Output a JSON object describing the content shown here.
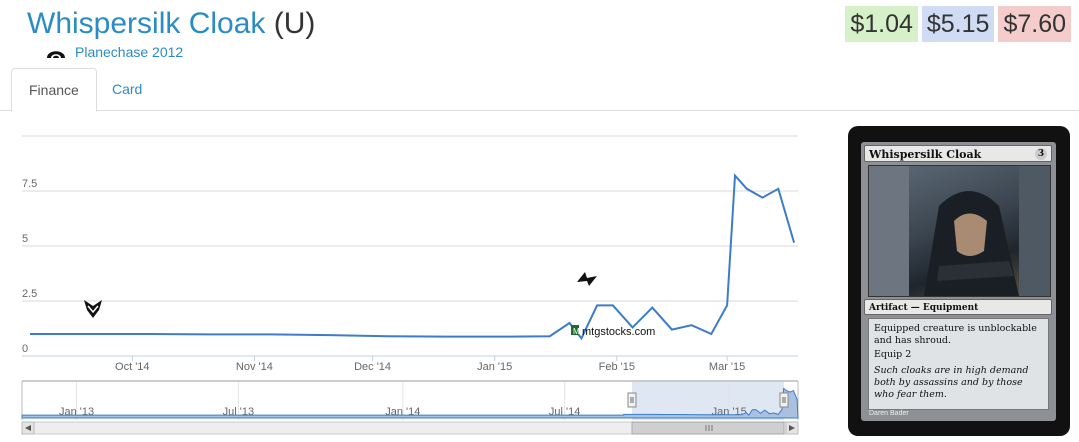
{
  "header": {
    "card_name": "Whispersilk Cloak",
    "rarity": "(U)",
    "set_name": "Planechase 2012",
    "set_icon": "planechase-icon"
  },
  "prices": [
    "$1.04",
    "$5.15",
    "$7.60"
  ],
  "colors": {
    "link": "#2a8cc6",
    "line": "#3d7cc9",
    "low": "#d6f0c9",
    "avg": "#d0dcf4",
    "high": "#f4cccc"
  },
  "tabs": [
    {
      "label": "Finance"
    },
    {
      "label": "Card"
    }
  ],
  "chart_data": {
    "type": "line",
    "x_tick_labels": [
      "Oct '14",
      "Nov '14",
      "Dec '14",
      "Jan '15",
      "Feb '15",
      "Mar '15"
    ],
    "y_tick_labels": [
      "0",
      "2.5",
      "5",
      "7.5"
    ],
    "ylim": [
      0,
      10
    ],
    "grid": true,
    "watermark": "mtgstocks.com",
    "x": [
      "2014-09-05",
      "2014-09-20",
      "2014-10-05",
      "2014-10-20",
      "2014-11-05",
      "2014-11-20",
      "2014-12-05",
      "2014-12-20",
      "2015-01-05",
      "2015-01-15",
      "2015-01-20",
      "2015-01-23",
      "2015-01-27",
      "2015-01-31",
      "2015-02-05",
      "2015-02-10",
      "2015-02-15",
      "2015-02-20",
      "2015-02-25",
      "2015-03-01",
      "2015-03-03",
      "2015-03-06",
      "2015-03-10",
      "2015-03-14",
      "2015-03-18"
    ],
    "values": [
      1.0,
      1.0,
      1.0,
      0.98,
      0.98,
      0.95,
      0.9,
      0.88,
      0.88,
      0.9,
      1.5,
      0.8,
      2.3,
      2.3,
      1.3,
      2.2,
      1.2,
      1.4,
      1.0,
      2.3,
      8.2,
      7.6,
      7.2,
      7.6,
      5.15
    ],
    "navigator": {
      "x_tick_labels": [
        "Jan '13",
        "Jul '13",
        "Jan '14",
        "Jul '14",
        "Jan '15"
      ]
    }
  },
  "card": {
    "title": "Whispersilk Cloak",
    "cost": "3",
    "type_line": "Artifact — Equipment",
    "rules_1": "Equipped creature is unblockable and has shroud.",
    "rules_2": "Equip 2",
    "flavor": "Such cloaks are in high demand both by assassins and by those who fear them.",
    "artist": "Daren Bader"
  }
}
